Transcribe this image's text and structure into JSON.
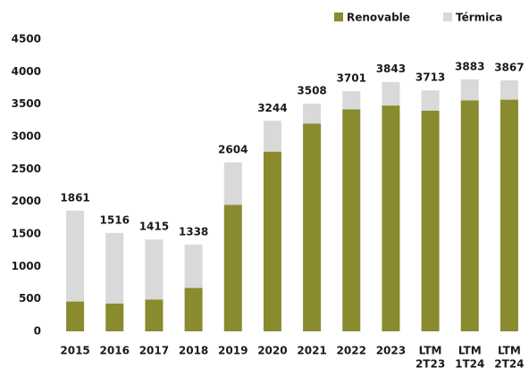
{
  "chart_data": {
    "type": "stacked_bar",
    "categories": [
      "2015",
      "2016",
      "2017",
      "2018",
      "2019",
      "2020",
      "2021",
      "2022",
      "2023",
      [
        "LTM",
        "2T23"
      ],
      [
        "LTM",
        "1T24"
      ],
      [
        "LTM",
        "2T24"
      ]
    ],
    "series": [
      {
        "name": "Renovable",
        "color": "#8a8a2e",
        "values": [
          460,
          430,
          490,
          670,
          1950,
          2770,
          3200,
          3420,
          3480,
          3400,
          3560,
          3570
        ]
      },
      {
        "name": "Térmica",
        "color": "#d9d9d9",
        "values": [
          1401,
          1086,
          925,
          668,
          654,
          474,
          308,
          281,
          363,
          313,
          323,
          297
        ]
      }
    ],
    "totals": [
      1861,
      1516,
      1415,
      1338,
      2604,
      3244,
      3508,
      3701,
      3843,
      3713,
      3883,
      3867
    ],
    "ylim": [
      0,
      4500
    ],
    "yticks": [
      0,
      500,
      1000,
      1500,
      2000,
      2500,
      3000,
      3500,
      4000,
      4500
    ],
    "grid": false,
    "legend": "top-right"
  }
}
